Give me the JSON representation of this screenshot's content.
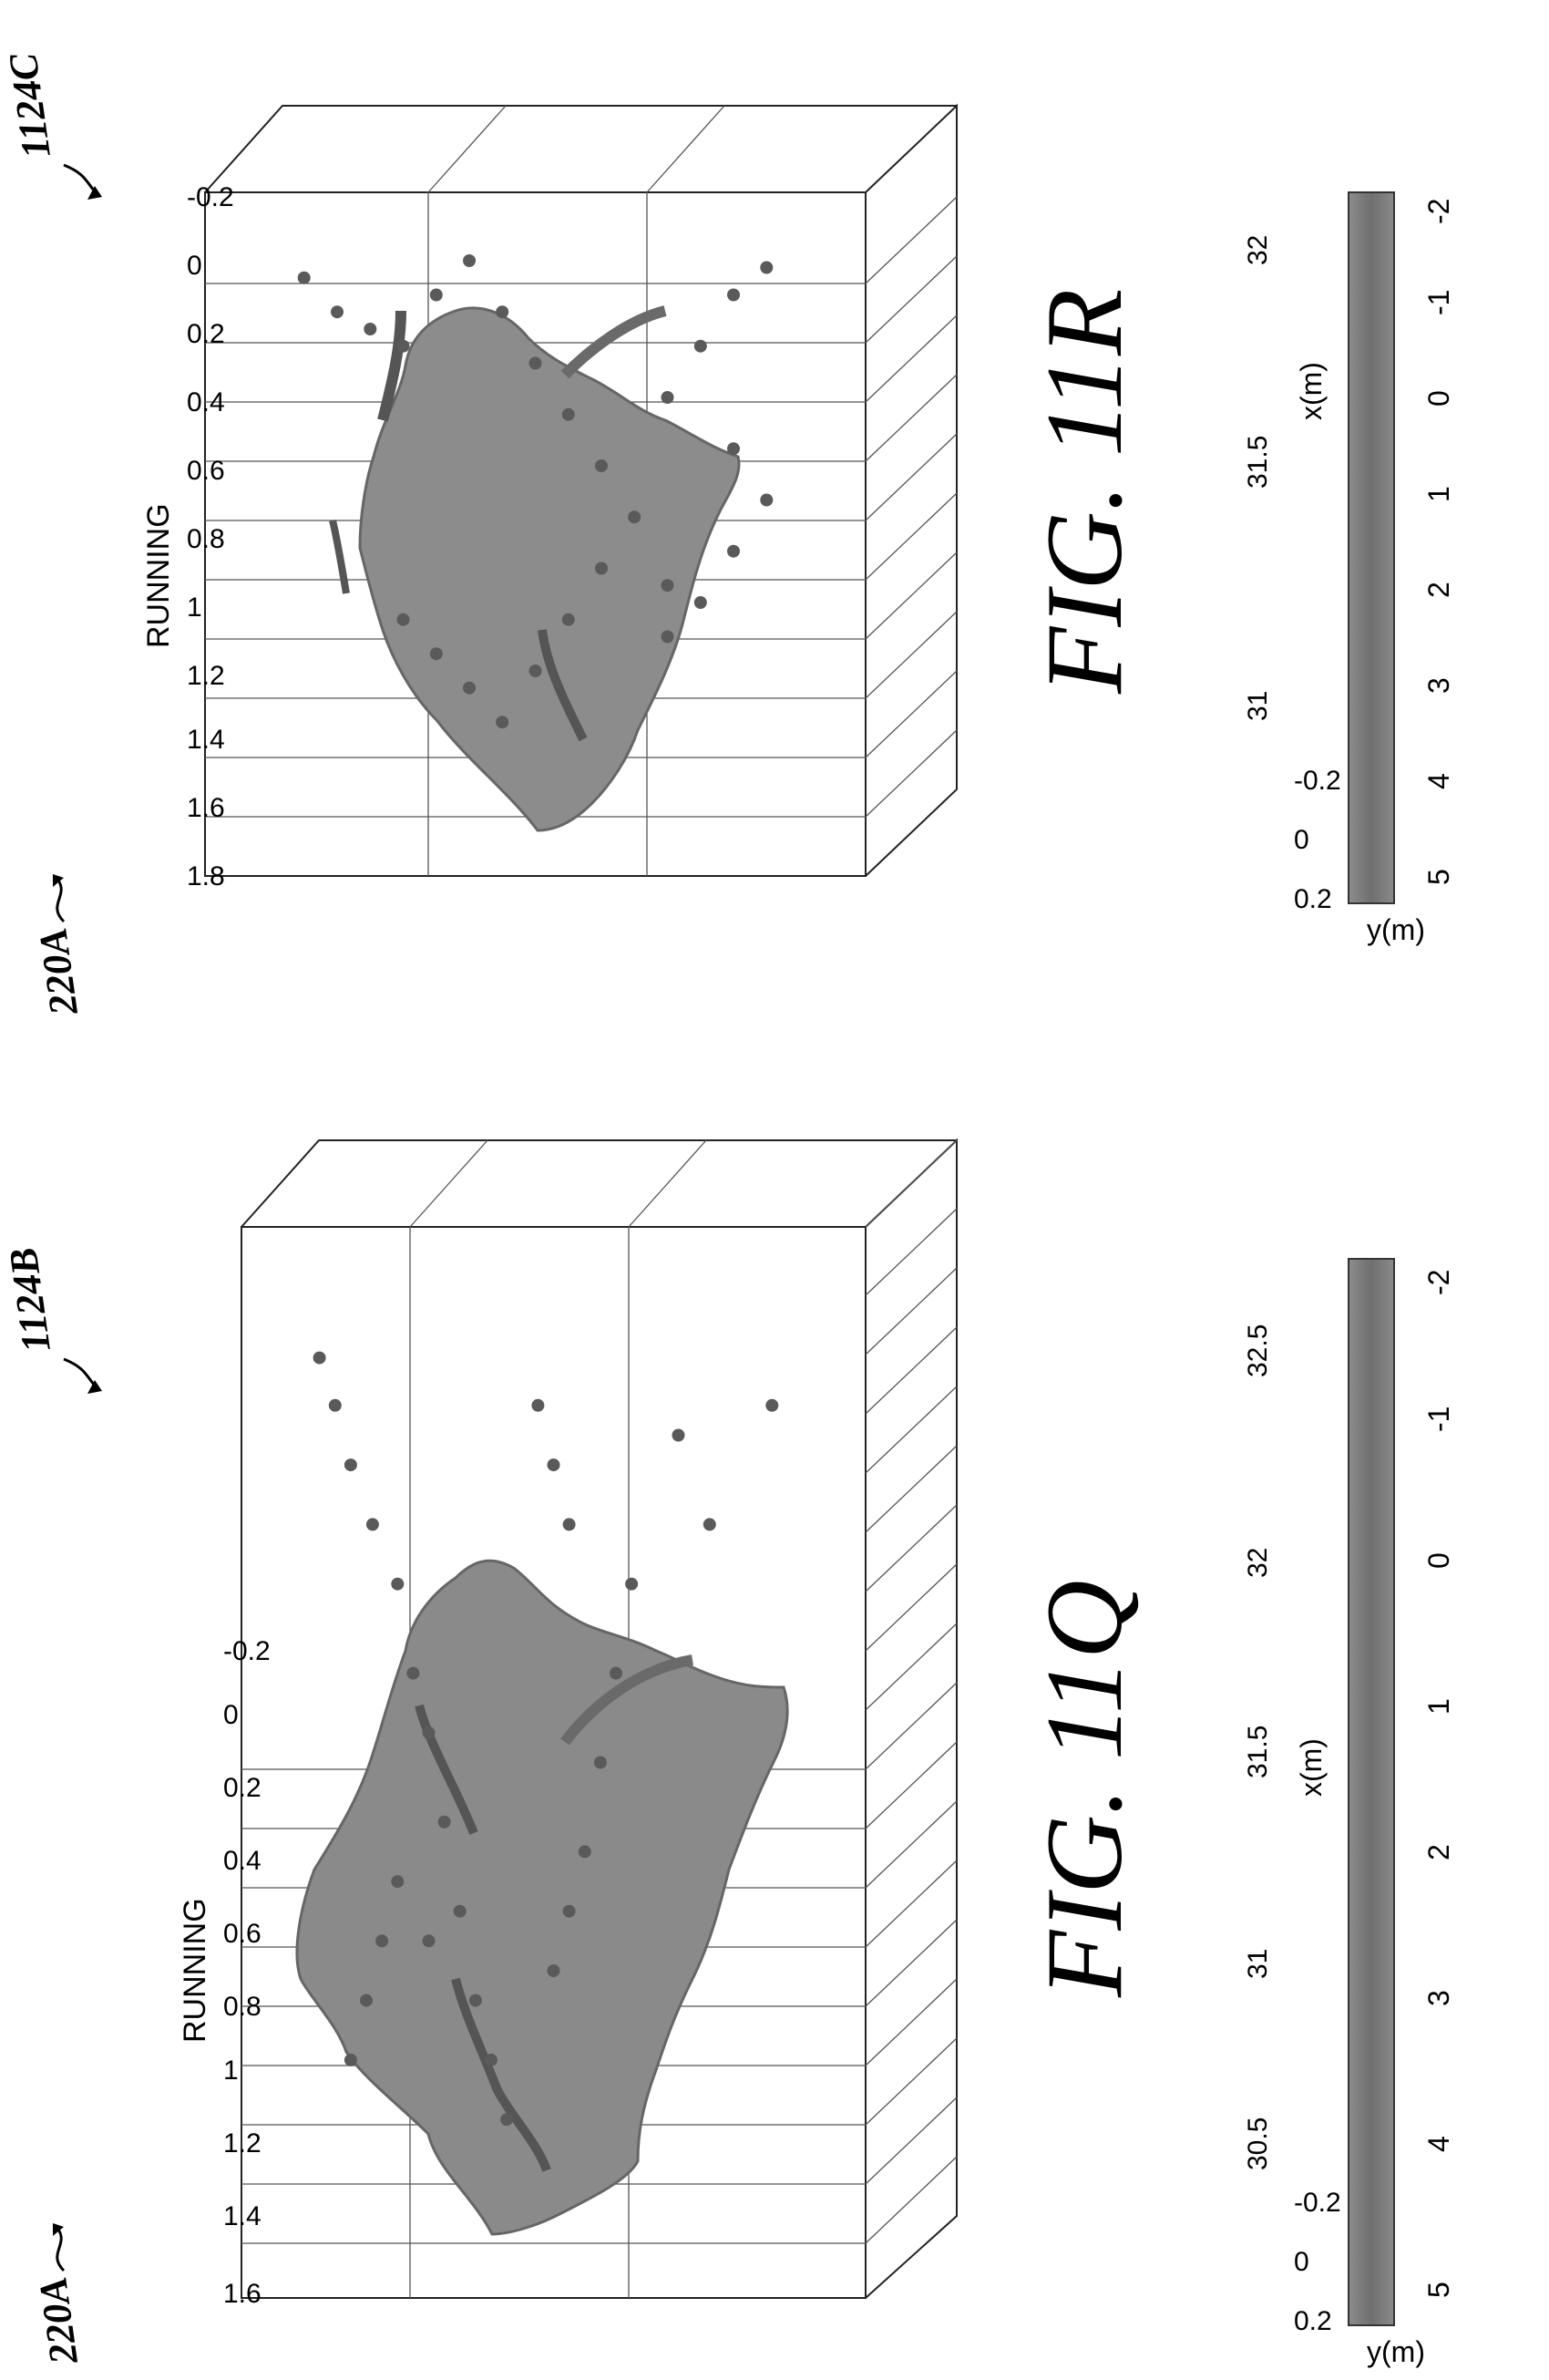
{
  "figures": [
    {
      "label": "FIG. 11Q",
      "ref_plot": "220A",
      "ref_colorbar": "1124B",
      "title": "RUNNING",
      "xlabel": "x(m)",
      "ylabel": "y(m)",
      "z_ticks": [
        "1.6",
        "1.4",
        "1.2",
        "1",
        "0.8",
        "0.6",
        "0.4",
        "0.2",
        "0",
        "-0.2"
      ],
      "x_ticks": [
        "30.5",
        "31",
        "31.5",
        "32",
        "32.5"
      ],
      "y_ticks": [
        "0.2",
        "0",
        "-0.2"
      ],
      "colorbar_ticks": [
        "5",
        "4",
        "3",
        "2",
        "1",
        "0",
        "-1",
        "-2"
      ]
    },
    {
      "label": "FIG. 11R",
      "ref_plot": "220A",
      "ref_colorbar": "1124C",
      "title": "RUNNING",
      "xlabel": "x(m)",
      "ylabel": "y(m)",
      "z_ticks": [
        "1.8",
        "1.6",
        "1.4",
        "1.2",
        "1",
        "0.8",
        "0.6",
        "0.4",
        "0.2",
        "0",
        "-0.2"
      ],
      "x_ticks": [
        "31",
        "31.5",
        "32"
      ],
      "y_ticks": [
        "0.2",
        "0",
        "-0.2"
      ],
      "colorbar_ticks": [
        "5",
        "4",
        "3",
        "2",
        "1",
        "0",
        "-1",
        "-2"
      ]
    }
  ],
  "chart_data": [
    {
      "type": "scatter",
      "title": "RUNNING",
      "xlabel": "x(m)",
      "ylabel": "y(m)",
      "zlabel": "",
      "xlim": [
        30.5,
        32.5
      ],
      "ylim": [
        -0.2,
        0.2
      ],
      "zlim": [
        -0.2,
        1.6
      ],
      "colorbar_range": [
        -2,
        5
      ],
      "series": [
        {
          "points": [
            [
              30.75,
              -0.05,
              0.02
            ],
            [
              30.8,
              0,
              0.1
            ],
            [
              30.85,
              0.02,
              0.2
            ],
            [
              30.92,
              0,
              0.3
            ],
            [
              31.0,
              0,
              0.4
            ],
            [
              31.05,
              0.02,
              0.55
            ],
            [
              31.1,
              0,
              0.65
            ],
            [
              31.15,
              0,
              0.8
            ],
            [
              31.2,
              0.02,
              0.95
            ],
            [
              31.25,
              0,
              1.1
            ],
            [
              31.3,
              0,
              1.2
            ],
            [
              31.35,
              0.02,
              1.3
            ],
            [
              31.1,
              0,
              1.0
            ],
            [
              31.0,
              0.02,
              0.9
            ],
            [
              30.95,
              0,
              1.0
            ],
            [
              30.9,
              0,
              1.1
            ],
            [
              30.85,
              0.02,
              1.2
            ],
            [
              31.5,
              0,
              1.05
            ],
            [
              31.55,
              0,
              0.95
            ],
            [
              31.6,
              0.02,
              0.85
            ],
            [
              31.65,
              0,
              0.7
            ],
            [
              31.7,
              0,
              0.55
            ],
            [
              31.75,
              0,
              0.4
            ],
            [
              31.55,
              0,
              0.3
            ],
            [
              31.5,
              0.02,
              0.2
            ],
            [
              31.45,
              0,
              0.1
            ],
            [
              31.9,
              0,
              0.15
            ],
            [
              32.0,
              0,
              0.3
            ],
            [
              32.2,
              0,
              0.1
            ]
          ]
        }
      ]
    },
    {
      "type": "scatter",
      "title": "RUNNING",
      "xlabel": "x(m)",
      "ylabel": "y(m)",
      "zlabel": "",
      "xlim": [
        31,
        32
      ],
      "ylim": [
        -0.2,
        0.2
      ],
      "zlim": [
        -0.2,
        1.8
      ],
      "colorbar_range": [
        -2,
        5
      ],
      "series": [
        {
          "points": [
            [
              31.15,
              0,
              0.05
            ],
            [
              31.2,
              0,
              0.15
            ],
            [
              31.25,
              0.02,
              0.2
            ],
            [
              31.3,
              0,
              0.25
            ],
            [
              31.35,
              0,
              0.1
            ],
            [
              31.4,
              0,
              0.0
            ],
            [
              31.45,
              0,
              0.15
            ],
            [
              31.5,
              0.02,
              0.3
            ],
            [
              31.55,
              0,
              0.45
            ],
            [
              31.6,
              0,
              0.6
            ],
            [
              31.65,
              0.02,
              0.75
            ],
            [
              31.6,
              0,
              0.9
            ],
            [
              31.55,
              0,
              1.05
            ],
            [
              31.5,
              0,
              1.2
            ],
            [
              31.45,
              0.02,
              1.35
            ],
            [
              31.4,
              0,
              1.25
            ],
            [
              31.35,
              0,
              1.15
            ],
            [
              31.3,
              0,
              1.05
            ],
            [
              31.7,
              0,
              1.1
            ],
            [
              31.75,
              0,
              1.0
            ],
            [
              31.8,
              0,
              0.85
            ],
            [
              31.85,
              0,
              0.7
            ],
            [
              31.8,
              0,
              0.55
            ],
            [
              31.7,
              0,
              0.4
            ],
            [
              31.75,
              0,
              0.25
            ],
            [
              31.8,
              0,
              0.1
            ],
            [
              31.85,
              0,
              0.02
            ],
            [
              31.7,
              0,
              0.95
            ]
          ]
        }
      ]
    }
  ]
}
